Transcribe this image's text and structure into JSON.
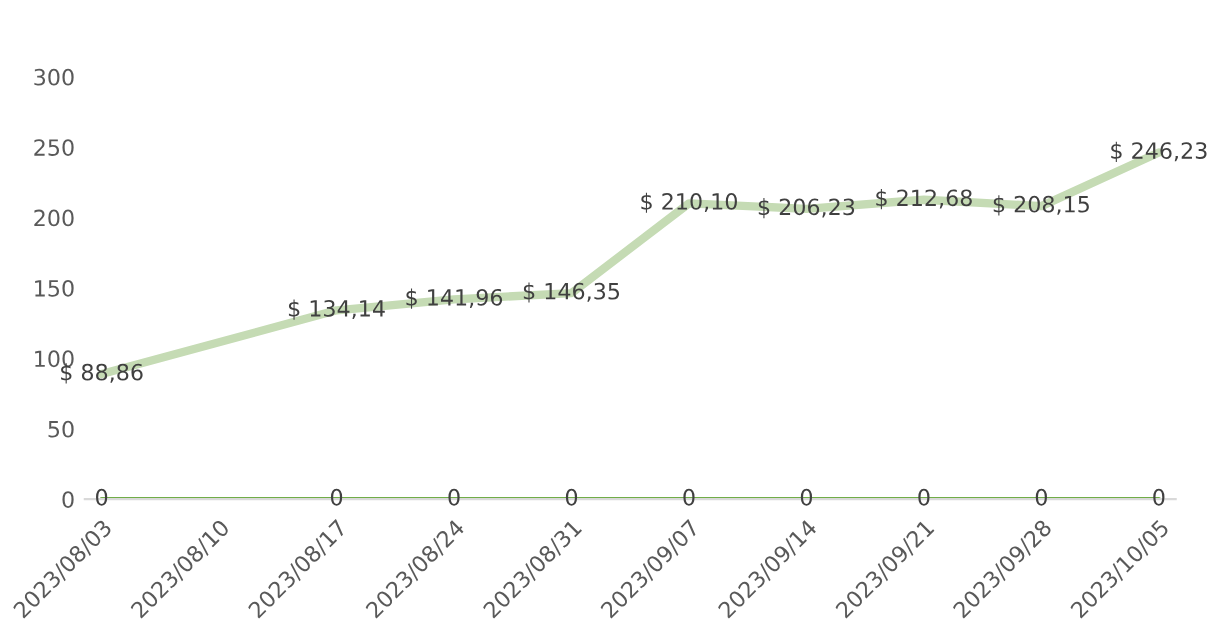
{
  "chart_data": {
    "type": "line",
    "x": [
      "2023-08-03",
      "2023-08-17",
      "2023-08-24",
      "2023-08-31",
      "2023-09-07",
      "2023-09-14",
      "2023-09-21",
      "2023-09-28",
      "2023-10-05"
    ],
    "series": [
      {
        "color": "#c5dbb4",
        "values": [
          88.86,
          134.14,
          141.96,
          146.35,
          210.1,
          206.23,
          212.68,
          208.15,
          246.23
        ],
        "value_labels": [
          "$ 88,86",
          "$ 134,14",
          "$ 141,96",
          "$ 146,35",
          "$ 210,10",
          "$ 206,23",
          "$ 212,68",
          "$ 208,15",
          "$ 246,23"
        ]
      },
      {
        "color": "#70ad47",
        "values": [
          0,
          0,
          0,
          0,
          0,
          0,
          0,
          0,
          0
        ],
        "value_labels": [
          "0",
          "0",
          "0",
          "0",
          "0",
          "0",
          "0",
          "0",
          "0"
        ]
      }
    ],
    "xlim": [
      "2023-08-02",
      "2023-10-06"
    ],
    "xticks": [
      {
        "value": "2023-08-03",
        "label": "2023/08/03"
      },
      {
        "value": "2023-08-10",
        "label": "2023/08/10"
      },
      {
        "value": "2023-08-17",
        "label": "2023/08/17"
      },
      {
        "value": "2023-08-24",
        "label": "2023/08/24"
      },
      {
        "value": "2023-08-31",
        "label": "2023/08/31"
      },
      {
        "value": "2023-09-07",
        "label": "2023/09/07"
      },
      {
        "value": "2023-09-14",
        "label": "2023/09/14"
      },
      {
        "value": "2023-09-21",
        "label": "2023/09/21"
      },
      {
        "value": "2023-09-28",
        "label": "2023/09/28"
      },
      {
        "value": "2023-10-05",
        "label": "2023/10/05"
      }
    ],
    "ylim": [
      0,
      300
    ],
    "yticks": [
      0,
      50,
      100,
      150,
      200,
      250,
      300
    ],
    "grid": false,
    "legend": false,
    "marker": "none",
    "line_style": "solid"
  }
}
